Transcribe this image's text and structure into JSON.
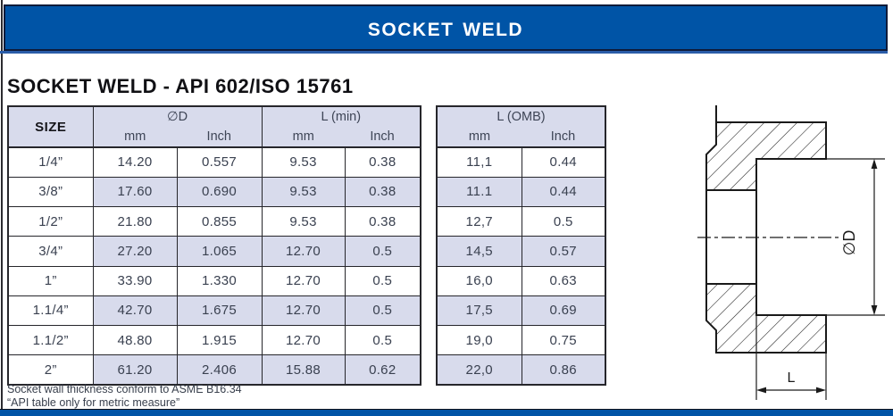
{
  "banner": {
    "title": "Socket Weld"
  },
  "page_title": "SOCKET WELD - API 602/ISO 15761",
  "colors": {
    "banner_bg": "#0054A6",
    "shaded_cell": "#D8DBEC",
    "border": "#26262b",
    "text_dark": "#3A4150"
  },
  "main_table": {
    "size_header": "SIZE",
    "groups": [
      {
        "label": "∅D"
      },
      {
        "label": "L (min)"
      }
    ],
    "sub_headers": [
      "mm",
      "Inch",
      "mm",
      "Inch"
    ],
    "rows": [
      {
        "size": "1/4”",
        "values": [
          "14.20",
          "0.557",
          "9.53",
          "0.38"
        ],
        "shaded": false
      },
      {
        "size": "3/8”",
        "values": [
          "17.60",
          "0.690",
          "9.53",
          "0.38"
        ],
        "shaded": true
      },
      {
        "size": "1/2”",
        "values": [
          "21.80",
          "0.855",
          "9.53",
          "0.38"
        ],
        "shaded": false
      },
      {
        "size": "3/4”",
        "values": [
          "27.20",
          "1.065",
          "12.70",
          "0.5"
        ],
        "shaded": true
      },
      {
        "size": "1”",
        "values": [
          "33.90",
          "1.330",
          "12.70",
          "0.5"
        ],
        "shaded": false
      },
      {
        "size": "1.1/4”",
        "values": [
          "42.70",
          "1.675",
          "12.70",
          "0.5"
        ],
        "shaded": true
      },
      {
        "size": "1.1/2”",
        "values": [
          "48.80",
          "1.915",
          "12.70",
          "0.5"
        ],
        "shaded": false
      },
      {
        "size": "2”",
        "values": [
          "61.20",
          "2.406",
          "15.88",
          "0.62"
        ],
        "shaded": true
      }
    ]
  },
  "omb_table": {
    "group_label": "L (OMB)",
    "sub_headers": [
      "mm",
      "Inch"
    ],
    "rows": [
      {
        "values": [
          "11,1",
          "0.44"
        ],
        "shaded": false
      },
      {
        "values": [
          "11.1",
          "0.44"
        ],
        "shaded": true
      },
      {
        "values": [
          "12,7",
          "0.5"
        ],
        "shaded": false
      },
      {
        "values": [
          "14,5",
          "0.57"
        ],
        "shaded": true
      },
      {
        "values": [
          "16,0",
          "0.63"
        ],
        "shaded": false
      },
      {
        "values": [
          "17,5",
          "0.69"
        ],
        "shaded": true
      },
      {
        "values": [
          "19,0",
          "0.75"
        ],
        "shaded": false
      },
      {
        "values": [
          "22,0",
          "0.86"
        ],
        "shaded": true
      }
    ]
  },
  "notes": [
    "Socket wall thickness conform to ASME B16.34",
    "“API table only for metric measure”"
  ],
  "diagram": {
    "diameter_label": "∅D",
    "length_label": "L"
  }
}
